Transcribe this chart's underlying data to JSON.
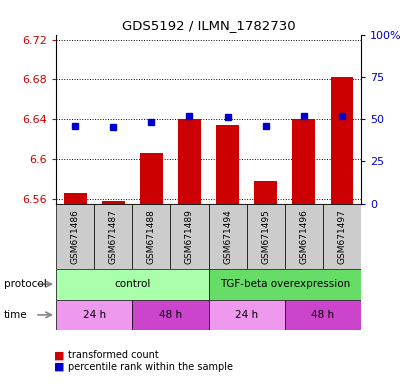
{
  "title": "GDS5192 / ILMN_1782730",
  "samples": [
    "GSM671486",
    "GSM671487",
    "GSM671488",
    "GSM671489",
    "GSM671494",
    "GSM671495",
    "GSM671496",
    "GSM671497"
  ],
  "transformed_count": [
    6.566,
    6.558,
    6.606,
    6.64,
    6.634,
    6.578,
    6.64,
    6.682
  ],
  "percentile_rank": [
    46,
    45,
    48,
    52,
    51,
    46,
    52,
    52
  ],
  "ylim_left": [
    6.555,
    6.725
  ],
  "ylim_right": [
    0,
    100
  ],
  "yticks_left": [
    6.56,
    6.6,
    6.64,
    6.68,
    6.72
  ],
  "yticks_right": [
    0,
    25,
    50,
    75,
    100
  ],
  "ytick_labels_right": [
    "0",
    "25",
    "50",
    "75",
    "100%"
  ],
  "bar_color": "#cc0000",
  "dot_color": "#0000cc",
  "bar_bottom": 6.555,
  "sample_label_color": "#d0d0d0",
  "protocol_groups": [
    {
      "label": "control",
      "start": 0,
      "end": 4,
      "color": "#aaffaa"
    },
    {
      "label": "TGF-beta overexpression",
      "start": 4,
      "end": 8,
      "color": "#66dd66"
    }
  ],
  "time_groups": [
    {
      "label": "24 h",
      "start": 0,
      "end": 2,
      "color": "#ee99ee"
    },
    {
      "label": "48 h",
      "start": 2,
      "end": 4,
      "color": "#cc44cc"
    },
    {
      "label": "24 h",
      "start": 4,
      "end": 6,
      "color": "#ee99ee"
    },
    {
      "label": "48 h",
      "start": 6,
      "end": 8,
      "color": "#cc44cc"
    }
  ],
  "legend_items": [
    {
      "label": "transformed count",
      "color": "#cc0000"
    },
    {
      "label": "percentile rank within the sample",
      "color": "#0000cc"
    }
  ]
}
